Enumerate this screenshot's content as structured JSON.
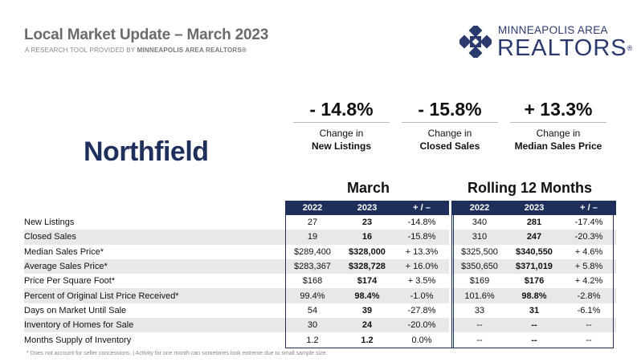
{
  "header": {
    "title": "Local Market Update – March 2023",
    "subtitle_prefix": "A RESEARCH TOOL PROVIDED BY ",
    "subtitle_org": "MINNEAPOLIS AREA REALTORS®"
  },
  "logo": {
    "line1": "MINNEAPOLIS AREA",
    "line2": "REALTORS",
    "reg": "®",
    "icon": "compass-cross-logo-icon",
    "color": "#2a3a6e"
  },
  "area_name": "Northfield",
  "kpis": [
    {
      "value": "- 14.8%",
      "label1": "Change in",
      "label2": "New Listings"
    },
    {
      "value": "- 15.8%",
      "label1": "Change in",
      "label2": "Closed Sales"
    },
    {
      "value": "+ 13.3%",
      "label1": "Change in",
      "label2": "Median Sales Price"
    }
  ],
  "sections": {
    "monthly": "March",
    "rolling": "Rolling 12 Months"
  },
  "table": {
    "headers": [
      "2022",
      "2023",
      "+ / –",
      "2022",
      "2023",
      "+ / –"
    ],
    "rows": [
      {
        "label": "New Listings",
        "m2022": "27",
        "m2023": "23",
        "mchg": "-14.8%",
        "r2022": "340",
        "r2023": "281",
        "rchg": "-17.4%"
      },
      {
        "label": "Closed Sales",
        "m2022": "19",
        "m2023": "16",
        "mchg": "-15.8%",
        "r2022": "310",
        "r2023": "247",
        "rchg": "-20.3%"
      },
      {
        "label": "Median Sales Price*",
        "m2022": "$289,400",
        "m2023": "$328,000",
        "mchg": "+ 13.3%",
        "r2022": "$325,500",
        "r2023": "$340,550",
        "rchg": "+ 4.6%"
      },
      {
        "label": "Average Sales Price*",
        "m2022": "$283,367",
        "m2023": "$328,728",
        "mchg": "+ 16.0%",
        "r2022": "$350,650",
        "r2023": "$371,019",
        "rchg": "+ 5.8%"
      },
      {
        "label": "Price Per Square Foot*",
        "m2022": "$168",
        "m2023": "$174",
        "mchg": "+ 3.5%",
        "r2022": "$169",
        "r2023": "$176",
        "rchg": "+ 4.2%"
      },
      {
        "label": "Percent of Original List Price Received*",
        "m2022": "99.4%",
        "m2023": "98.4%",
        "mchg": "-1.0%",
        "r2022": "101.6%",
        "r2023": "98.8%",
        "rchg": "-2.8%"
      },
      {
        "label": "Days on Market Until Sale",
        "m2022": "54",
        "m2023": "39",
        "mchg": "-27.8%",
        "r2022": "33",
        "r2023": "31",
        "rchg": "-6.1%"
      },
      {
        "label": "Inventory of Homes for Sale",
        "m2022": "30",
        "m2023": "24",
        "mchg": "-20.0%",
        "r2022": "--",
        "r2023": "--",
        "rchg": "--"
      },
      {
        "label": "Months Supply of Inventory",
        "m2022": "1.2",
        "m2023": "1.2",
        "mchg": "0.0%",
        "r2022": "--",
        "r2023": "--",
        "rchg": "--"
      }
    ]
  },
  "footnote": "* Does not account for seller concessions.  |  Activity for one month can sometimes look extreme due to small sample size.",
  "colors": {
    "navy": "#1f2f5c",
    "stripe": "#e8e8e8"
  }
}
